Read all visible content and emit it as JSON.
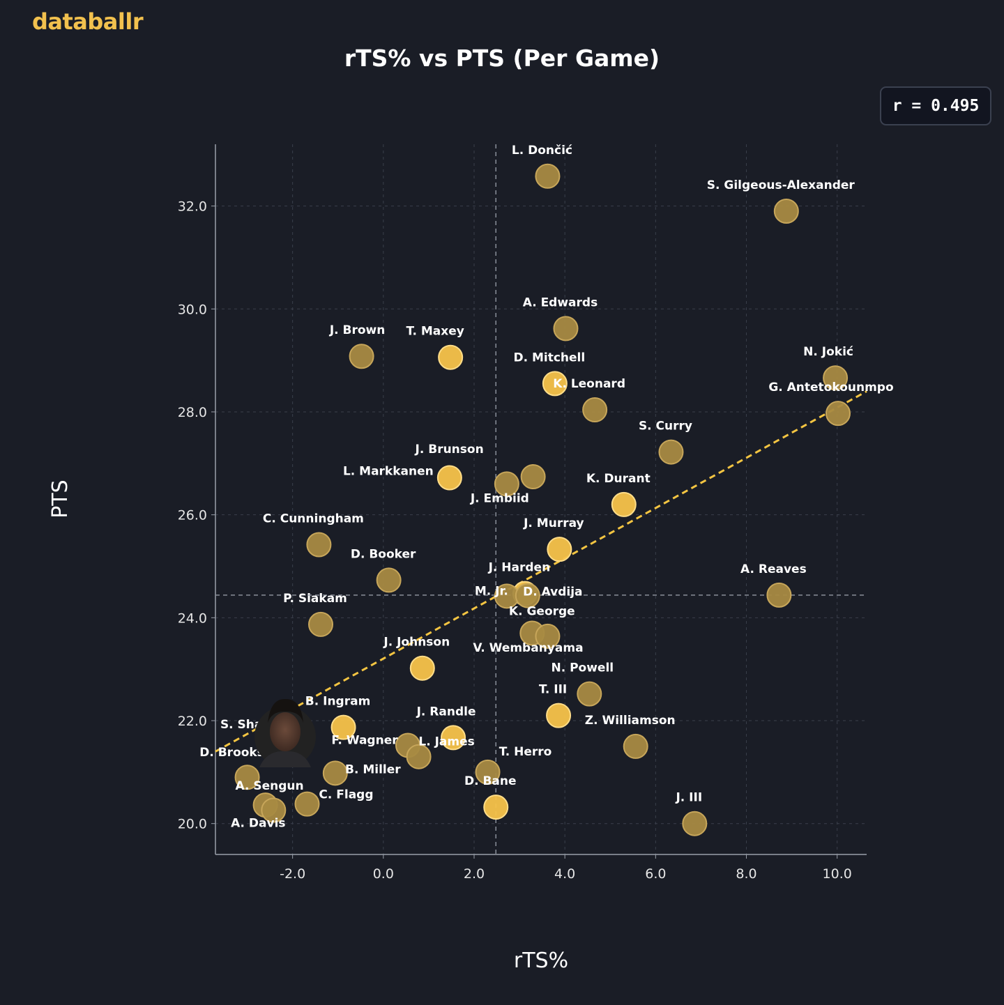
{
  "brand": "databallr",
  "chart_data": {
    "type": "scatter",
    "title": "rTS% vs PTS (Per Game)",
    "xlabel": "rTS%",
    "ylabel": "PTS",
    "xlim": [
      -3.7,
      10.65
    ],
    "ylim": [
      19.4,
      33.2
    ],
    "xticks": [
      -2,
      0,
      2,
      4,
      6,
      8,
      10
    ],
    "yticks": [
      20,
      22,
      24,
      26,
      28,
      30,
      32
    ],
    "xtick_labels": [
      "-2.0",
      "0.0",
      "2.0",
      "4.0",
      "6.0",
      "8.0",
      "10.0"
    ],
    "ytick_labels": [
      "20.0",
      "22.0",
      "24.0",
      "26.0",
      "28.0",
      "30.0",
      "32.0"
    ],
    "grid": true,
    "correlation_label": "r = 0.495",
    "mean_x": 2.48,
    "mean_y": 24.44,
    "trendline": {
      "x": [
        -3.7,
        10.65
      ],
      "y": [
        21.4,
        28.4
      ]
    },
    "colors": {
      "bright": "#f7c34a",
      "muted": "#a88a42",
      "trend": "#f4c542"
    },
    "points": [
      {
        "label": "L. Dončić",
        "x": 3.62,
        "y": 32.58,
        "hl": false
      },
      {
        "label": "S. Gilgeous-Alexander",
        "x": 8.88,
        "y": 31.9,
        "hl": false
      },
      {
        "label": "A. Edwards",
        "x": 4.02,
        "y": 29.62,
        "hl": false
      },
      {
        "label": "J. Brown",
        "x": -0.48,
        "y": 29.08,
        "hl": false
      },
      {
        "label": "T. Maxey",
        "x": 1.48,
        "y": 29.06,
        "hl": true
      },
      {
        "label": "D. Mitchell",
        "x": 3.78,
        "y": 28.55,
        "hl": true
      },
      {
        "label": "N. Jokić",
        "x": 9.96,
        "y": 28.66,
        "hl": false
      },
      {
        "label": "K. Leonard",
        "x": 4.66,
        "y": 28.04,
        "hl": false
      },
      {
        "label": "G. Antetokounmpo",
        "x": 10.02,
        "y": 27.97,
        "hl": false
      },
      {
        "label": "S. Curry",
        "x": 6.34,
        "y": 27.22,
        "hl": false
      },
      {
        "label": "J. Brunson",
        "x": 3.3,
        "y": 26.74,
        "hl": false
      },
      {
        "label": "L. Markkanen",
        "x": 1.46,
        "y": 26.72,
        "hl": true
      },
      {
        "label": "J. Embiid",
        "x": 2.72,
        "y": 26.6,
        "hl": false
      },
      {
        "label": "K. Durant",
        "x": 5.3,
        "y": 26.2,
        "hl": true
      },
      {
        "label": "C. Cunningham",
        "x": -1.42,
        "y": 25.42,
        "hl": false
      },
      {
        "label": "J. Murray",
        "x": 3.88,
        "y": 25.33,
        "hl": true
      },
      {
        "label": "D. Booker",
        "x": 0.12,
        "y": 24.73,
        "hl": false
      },
      {
        "label": "J. Harden",
        "x": 3.12,
        "y": 24.47,
        "hl": true
      },
      {
        "label": "M. Jr.",
        "x": 2.72,
        "y": 24.42,
        "hl": false
      },
      {
        "label": "D. Avdija",
        "x": 3.18,
        "y": 24.43,
        "hl": false
      },
      {
        "label": "A. Reaves",
        "x": 8.72,
        "y": 24.44,
        "hl": false
      },
      {
        "label": "P. Siakam",
        "x": -1.38,
        "y": 23.87,
        "hl": false
      },
      {
        "label": "K. George",
        "x": 3.28,
        "y": 23.7,
        "hl": false
      },
      {
        "label": "V. Wembanyama",
        "x": 3.62,
        "y": 23.64,
        "hl": false
      },
      {
        "label": "J. Johnson",
        "x": 0.86,
        "y": 23.02,
        "hl": true
      },
      {
        "label": "N. Powell",
        "x": 4.54,
        "y": 22.52,
        "hl": false
      },
      {
        "label": "T. III",
        "x": 3.86,
        "y": 22.1,
        "hl": true
      },
      {
        "label": "B. Ingram",
        "x": -0.88,
        "y": 21.87,
        "hl": true
      },
      {
        "label": "J. Randle",
        "x": 1.54,
        "y": 21.67,
        "hl": true
      },
      {
        "label": "S. Sharpe",
        "x": -2.36,
        "y": 21.8,
        "hl": false
      },
      {
        "label": "F. Wagner",
        "x": 0.54,
        "y": 21.52,
        "hl": false
      },
      {
        "label": "L. James",
        "x": 0.78,
        "y": 21.3,
        "hl": false
      },
      {
        "label": "Z. Williamson",
        "x": 5.56,
        "y": 21.5,
        "hl": false
      },
      {
        "label": "T. Herro",
        "x": 2.3,
        "y": 21.0,
        "hl": false
      },
      {
        "label": "D. Brooks",
        "x": -3.0,
        "y": 20.9,
        "hl": false
      },
      {
        "label": "B. Miller",
        "x": -1.06,
        "y": 20.98,
        "hl": false
      },
      {
        "label": "D. Bane",
        "x": 2.48,
        "y": 20.32,
        "hl": true
      },
      {
        "label": "A. Sengun",
        "x": -2.6,
        "y": 20.36,
        "hl": false
      },
      {
        "label": "C. Flagg",
        "x": -1.68,
        "y": 20.38,
        "hl": false
      },
      {
        "label": "A. Davis",
        "x": -2.42,
        "y": 20.26,
        "hl": false
      },
      {
        "label": "J. III",
        "x": 6.86,
        "y": 20.0,
        "hl": false
      }
    ]
  }
}
